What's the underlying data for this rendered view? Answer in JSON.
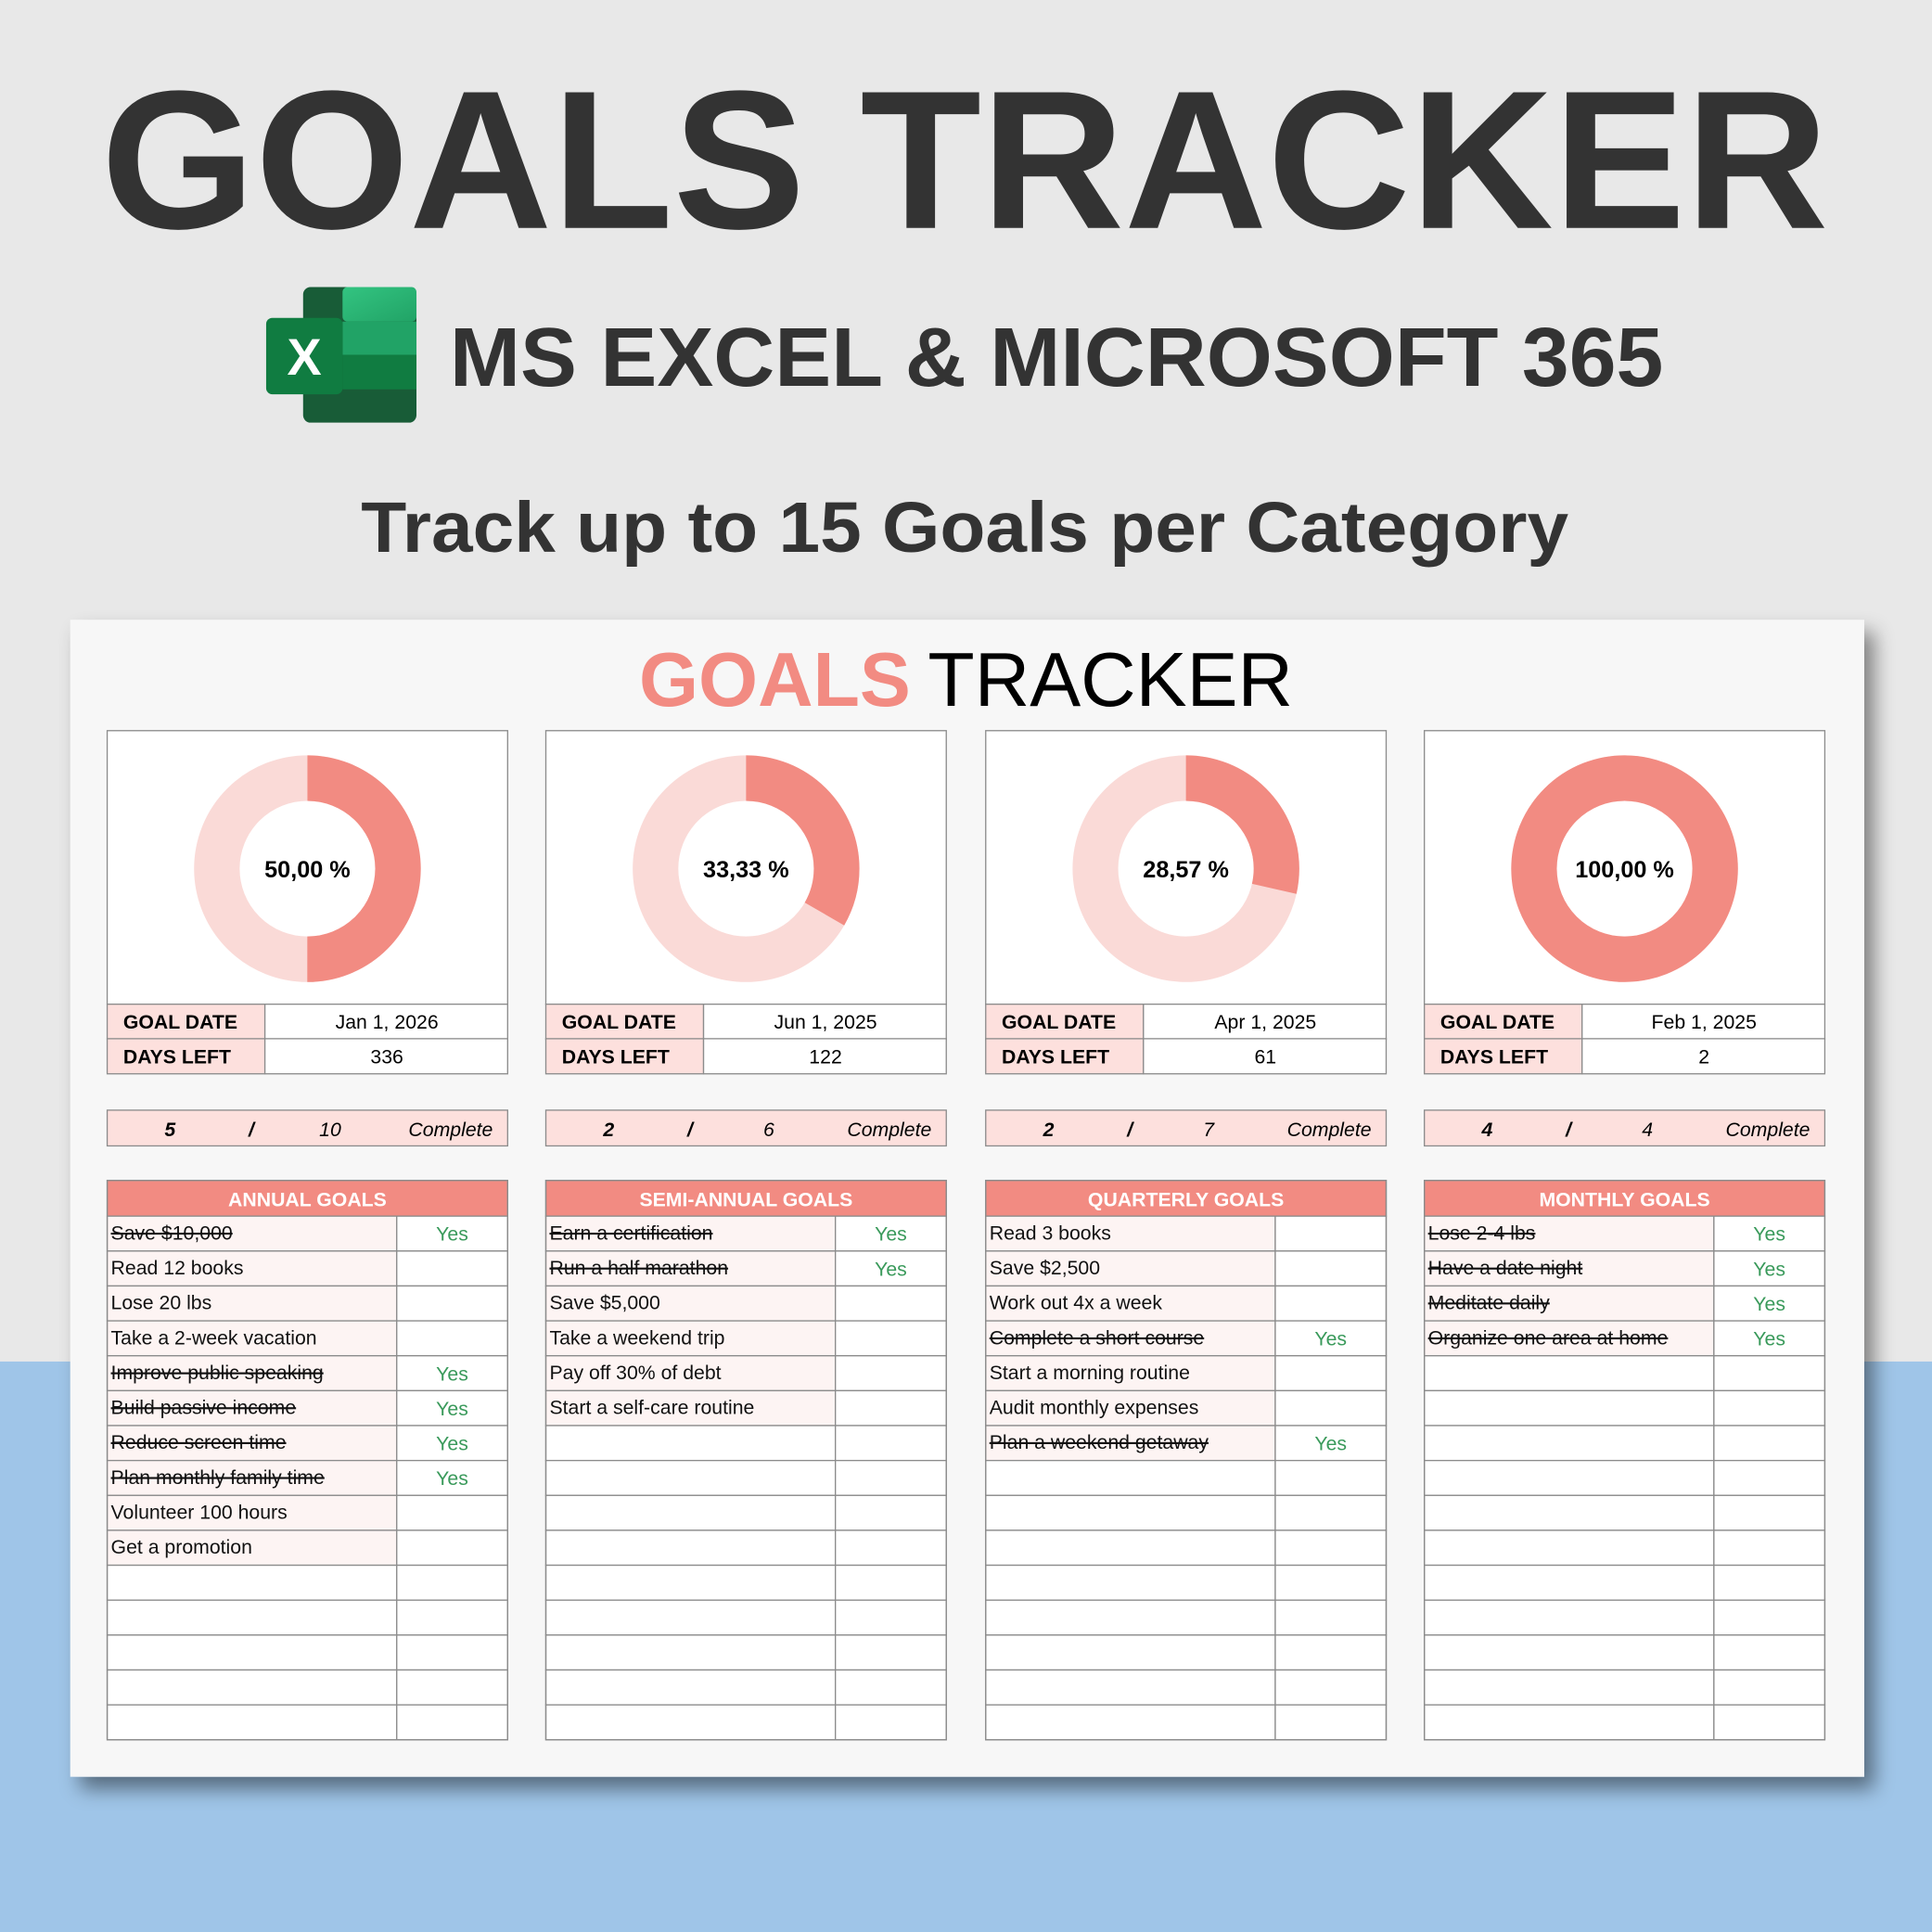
{
  "header": {
    "title": "GOALS TRACKER",
    "icon_letter": "X",
    "subtitle": "MS EXCEL & MICROSOFT 365",
    "tagline": "Track up to 15 Goals per Category"
  },
  "sheet": {
    "title_accent": "GOALS",
    "title_rest": "TRACKER",
    "panels": [
      {
        "percent": 50,
        "percent_label": "50,00 %",
        "goal_date_label": "GOAL DATE",
        "goal_date": "Jan 1, 2026",
        "days_left_label": "DAYS LEFT",
        "days_left": "336",
        "completed": "5",
        "separator": "/",
        "total": "10",
        "complete_label": "Complete",
        "category": "ANNUAL GOALS",
        "goals": [
          {
            "text": "Save $10,000",
            "status": "Yes"
          },
          {
            "text": "Read 12 books",
            "status": null
          },
          {
            "text": "Lose 20 lbs",
            "status": null
          },
          {
            "text": "Take a 2-week vacation",
            "status": null
          },
          {
            "text": "Improve public speaking",
            "status": "Yes"
          },
          {
            "text": "Build passive income",
            "status": "Yes"
          },
          {
            "text": "Reduce screen time",
            "status": "Yes"
          },
          {
            "text": "Plan monthly family time",
            "status": "Yes"
          },
          {
            "text": "Volunteer 100 hours",
            "status": null
          },
          {
            "text": "Get a promotion",
            "status": null
          }
        ]
      },
      {
        "percent": 33.33,
        "percent_label": "33,33 %",
        "goal_date_label": "GOAL DATE",
        "goal_date": "Jun 1, 2025",
        "days_left_label": "DAYS LEFT",
        "days_left": "122",
        "completed": "2",
        "separator": "/",
        "total": "6",
        "complete_label": "Complete",
        "category": "SEMI-ANNUAL GOALS",
        "goals": [
          {
            "text": "Earn a certification",
            "status": "Yes"
          },
          {
            "text": "Run a half marathon",
            "status": "Yes"
          },
          {
            "text": "Save $5,000",
            "status": null
          },
          {
            "text": "Take a weekend trip",
            "status": null
          },
          {
            "text": "Pay off 30% of debt",
            "status": null
          },
          {
            "text": "Start a self-care routine",
            "status": null
          }
        ]
      },
      {
        "percent": 28.57,
        "percent_label": "28,57 %",
        "goal_date_label": "GOAL DATE",
        "goal_date": "Apr 1, 2025",
        "days_left_label": "DAYS LEFT",
        "days_left": "61",
        "completed": "2",
        "separator": "/",
        "total": "7",
        "complete_label": "Complete",
        "category": "QUARTERLY GOALS",
        "goals": [
          {
            "text": "Read 3 books",
            "status": null
          },
          {
            "text": "Save $2,500",
            "status": null
          },
          {
            "text": "Work out 4x a week",
            "status": null
          },
          {
            "text": "Complete a short course",
            "status": "Yes"
          },
          {
            "text": "Start a morning routine",
            "status": null
          },
          {
            "text": "Audit monthly expenses",
            "status": null
          },
          {
            "text": "Plan a weekend getaway",
            "status": "Yes"
          }
        ]
      },
      {
        "percent": 100,
        "percent_label": "100,00 %",
        "goal_date_label": "GOAL DATE",
        "goal_date": "Feb 1, 2025",
        "days_left_label": "DAYS LEFT",
        "days_left": "2",
        "completed": "4",
        "separator": "/",
        "total": "4",
        "complete_label": "Complete",
        "category": "MONTHLY GOALS",
        "goals": [
          {
            "text": "Lose 2-4 lbs",
            "status": "Yes"
          },
          {
            "text": "Have a date night",
            "status": "Yes"
          },
          {
            "text": "Meditate daily",
            "status": "Yes"
          },
          {
            "text": "Organize one area at home",
            "status": "Yes"
          }
        ]
      }
    ]
  }
}
